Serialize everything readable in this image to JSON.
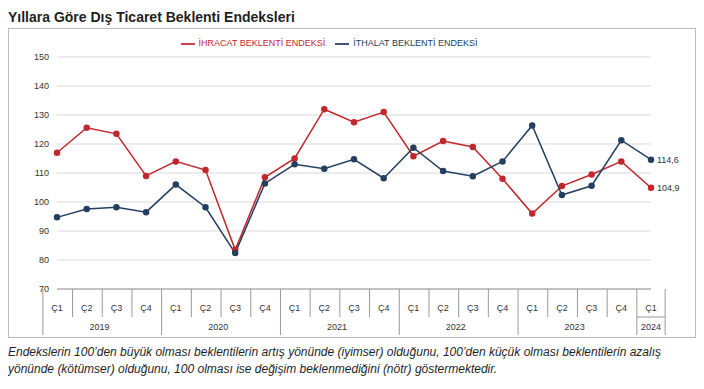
{
  "chart_data": {
    "type": "line",
    "title": "Yıllara Göre Dış Ticaret Beklenti Endeksleri",
    "categories": [
      "Ç1",
      "Ç2",
      "Ç3",
      "Ç4",
      "Ç1",
      "Ç2",
      "Ç3",
      "Ç4",
      "Ç1",
      "Ç2",
      "Ç3",
      "Ç4",
      "Ç1",
      "Ç2",
      "Ç3",
      "Ç4",
      "Ç1",
      "Ç2",
      "Ç3",
      "Ç4",
      "Ç1"
    ],
    "years": [
      "2019",
      "2019",
      "2019",
      "2019",
      "2020",
      "2020",
      "2020",
      "2020",
      "2021",
      "2021",
      "2021",
      "2021",
      "2022",
      "2022",
      "2022",
      "2022",
      "2023",
      "2023",
      "2023",
      "2023",
      "2024"
    ],
    "series": [
      {
        "name": "İHRACAT BEKLENTİ ENDEKSİ",
        "color": "#c0282d",
        "marker": "circle",
        "values": [
          117,
          125.6,
          123.5,
          109,
          114,
          111,
          83.5,
          108.5,
          115,
          132,
          127.5,
          131,
          115.8,
          121,
          119,
          108,
          96,
          105.5,
          109.5,
          114,
          104.9
        ],
        "value_labels": [
          null,
          null,
          null,
          null,
          null,
          null,
          null,
          null,
          null,
          null,
          null,
          null,
          null,
          null,
          null,
          null,
          null,
          null,
          null,
          null,
          "104,9"
        ]
      },
      {
        "name": "İTHALAT BEKLENTİ ENDEKSİ",
        "color": "#243f60",
        "marker": "circle",
        "values": [
          94.7,
          97.6,
          98.2,
          96.5,
          106,
          98.2,
          82.4,
          106.4,
          113,
          111.5,
          114.7,
          108.2,
          118.7,
          110.7,
          108.9,
          114,
          126.4,
          102.4,
          105.6,
          121.3,
          114.6
        ],
        "value_labels": [
          null,
          null,
          null,
          null,
          null,
          null,
          null,
          null,
          null,
          null,
          null,
          null,
          null,
          null,
          null,
          null,
          null,
          null,
          null,
          null,
          "114,6"
        ]
      }
    ],
    "ylim": [
      70,
      150
    ],
    "yticks": [
      70,
      80,
      90,
      100,
      110,
      120,
      130,
      140,
      150
    ],
    "grid": true,
    "legend": "top",
    "note": "Endekslerin 100’den büyük olması beklentilerin artış yönünde (iyimser) olduğunu, 100’den küçük olması beklentilerin azalış yönünde (kötümser) olduğunu, 100 olması ise değişim beklenmediğini (nötr) göstermektedir."
  }
}
